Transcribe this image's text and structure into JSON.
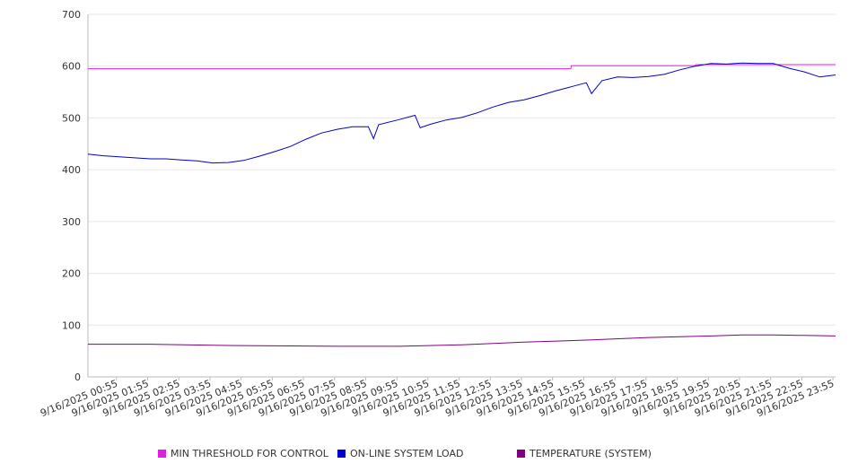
{
  "chart_data": {
    "type": "line",
    "title": "",
    "xlabel": "",
    "ylabel": "",
    "ylim": [
      0,
      700
    ],
    "y_ticks": [
      0,
      100,
      200,
      300,
      400,
      500,
      600,
      700
    ],
    "grid": true,
    "legend_position": "bottom",
    "x_tick_labels": [
      "9/16/2025 00:55",
      "9/16/2025 01:55",
      "9/16/2025 02:55",
      "9/16/2025 03:55",
      "9/16/2025 04:55",
      "9/16/2025 05:55",
      "9/16/2025 06:55",
      "9/16/2025 07:55",
      "9/16/2025 08:55",
      "9/16/2025 09:55",
      "9/16/2025 10:55",
      "9/16/2025 11:55",
      "9/16/2025 12:55",
      "9/16/2025 13:55",
      "9/16/2025 14:55",
      "9/16/2025 15:55",
      "9/16/2025 16:55",
      "9/16/2025 17:55",
      "9/16/2025 18:55",
      "9/16/2025 19:55",
      "9/16/2025 20:55",
      "9/16/2025 21:55",
      "9/16/2025 22:55",
      "9/16/2025 23:55"
    ],
    "x_range": [
      "9/16/2025 00:00",
      "9/17/2025 00:00"
    ],
    "series": [
      {
        "name": "MIN THRESHOLD FOR CONTROL",
        "color": "#e020e0",
        "points": [
          [
            "9/16/2025 00:00",
            595
          ],
          [
            "9/16/2025 15:30",
            595
          ],
          [
            "9/16/2025 15:31",
            601
          ],
          [
            "9/16/2025 19:30",
            601
          ],
          [
            "9/16/2025 19:31",
            603
          ],
          [
            "9/17/2025 00:00",
            603
          ]
        ]
      },
      {
        "name": "ON-LINE SYSTEM LOAD",
        "color": "#0000cc",
        "points": [
          [
            "9/16/2025 00:00",
            430
          ],
          [
            "9/16/2025 00:30",
            427
          ],
          [
            "9/16/2025 01:00",
            425
          ],
          [
            "9/16/2025 01:30",
            423
          ],
          [
            "9/16/2025 02:00",
            421
          ],
          [
            "9/16/2025 02:30",
            421
          ],
          [
            "9/16/2025 03:00",
            419
          ],
          [
            "9/16/2025 03:30",
            417
          ],
          [
            "9/16/2025 04:00",
            413
          ],
          [
            "9/16/2025 04:30",
            414
          ],
          [
            "9/16/2025 05:00",
            418
          ],
          [
            "9/16/2025 05:30",
            426
          ],
          [
            "9/16/2025 06:00",
            435
          ],
          [
            "9/16/2025 06:30",
            445
          ],
          [
            "9/16/2025 07:00",
            459
          ],
          [
            "9/16/2025 07:30",
            471
          ],
          [
            "9/16/2025 08:00",
            478
          ],
          [
            "9/16/2025 08:30",
            483
          ],
          [
            "9/16/2025 09:00",
            483
          ],
          [
            "9/16/2025 09:10",
            460
          ],
          [
            "9/16/2025 09:20",
            487
          ],
          [
            "9/16/2025 10:00",
            497
          ],
          [
            "9/16/2025 10:30",
            505
          ],
          [
            "9/16/2025 10:40",
            481
          ],
          [
            "9/16/2025 11:00",
            488
          ],
          [
            "9/16/2025 11:30",
            496
          ],
          [
            "9/16/2025 12:00",
            501
          ],
          [
            "9/16/2025 12:30",
            510
          ],
          [
            "9/16/2025 13:00",
            521
          ],
          [
            "9/16/2025 13:30",
            530
          ],
          [
            "9/16/2025 14:00",
            535
          ],
          [
            "9/16/2025 14:30",
            543
          ],
          [
            "9/16/2025 15:00",
            552
          ],
          [
            "9/16/2025 15:30",
            560
          ],
          [
            "9/16/2025 16:00",
            568
          ],
          [
            "9/16/2025 16:10",
            547
          ],
          [
            "9/16/2025 16:30",
            572
          ],
          [
            "9/16/2025 17:00",
            579
          ],
          [
            "9/16/2025 17:30",
            578
          ],
          [
            "9/16/2025 18:00",
            580
          ],
          [
            "9/16/2025 18:30",
            584
          ],
          [
            "9/16/2025 19:00",
            593
          ],
          [
            "9/16/2025 19:30",
            600
          ],
          [
            "9/16/2025 20:00",
            605
          ],
          [
            "9/16/2025 20:30",
            604
          ],
          [
            "9/16/2025 21:00",
            606
          ],
          [
            "9/16/2025 21:30",
            605
          ],
          [
            "9/16/2025 22:00",
            605
          ],
          [
            "9/16/2025 22:30",
            596
          ],
          [
            "9/16/2025 23:00",
            589
          ],
          [
            "9/16/2025 23:30",
            579
          ],
          [
            "9/17/2025 00:00",
            583
          ]
        ]
      },
      {
        "name": "TEMPERATURE (SYSTEM)",
        "color": "#800080",
        "points": [
          [
            "9/16/2025 00:00",
            63
          ],
          [
            "9/16/2025 02:00",
            63
          ],
          [
            "9/16/2025 04:00",
            61
          ],
          [
            "9/16/2025 06:00",
            60
          ],
          [
            "9/16/2025 08:00",
            59
          ],
          [
            "9/16/2025 10:00",
            59
          ],
          [
            "9/16/2025 12:00",
            62
          ],
          [
            "9/16/2025 14:00",
            67
          ],
          [
            "9/16/2025 16:00",
            71
          ],
          [
            "9/16/2025 18:00",
            76
          ],
          [
            "9/16/2025 20:00",
            79
          ],
          [
            "9/16/2025 21:00",
            81
          ],
          [
            "9/16/2025 22:00",
            81
          ],
          [
            "9/16/2025 23:00",
            80
          ],
          [
            "9/17/2025 00:00",
            79
          ]
        ]
      }
    ]
  }
}
